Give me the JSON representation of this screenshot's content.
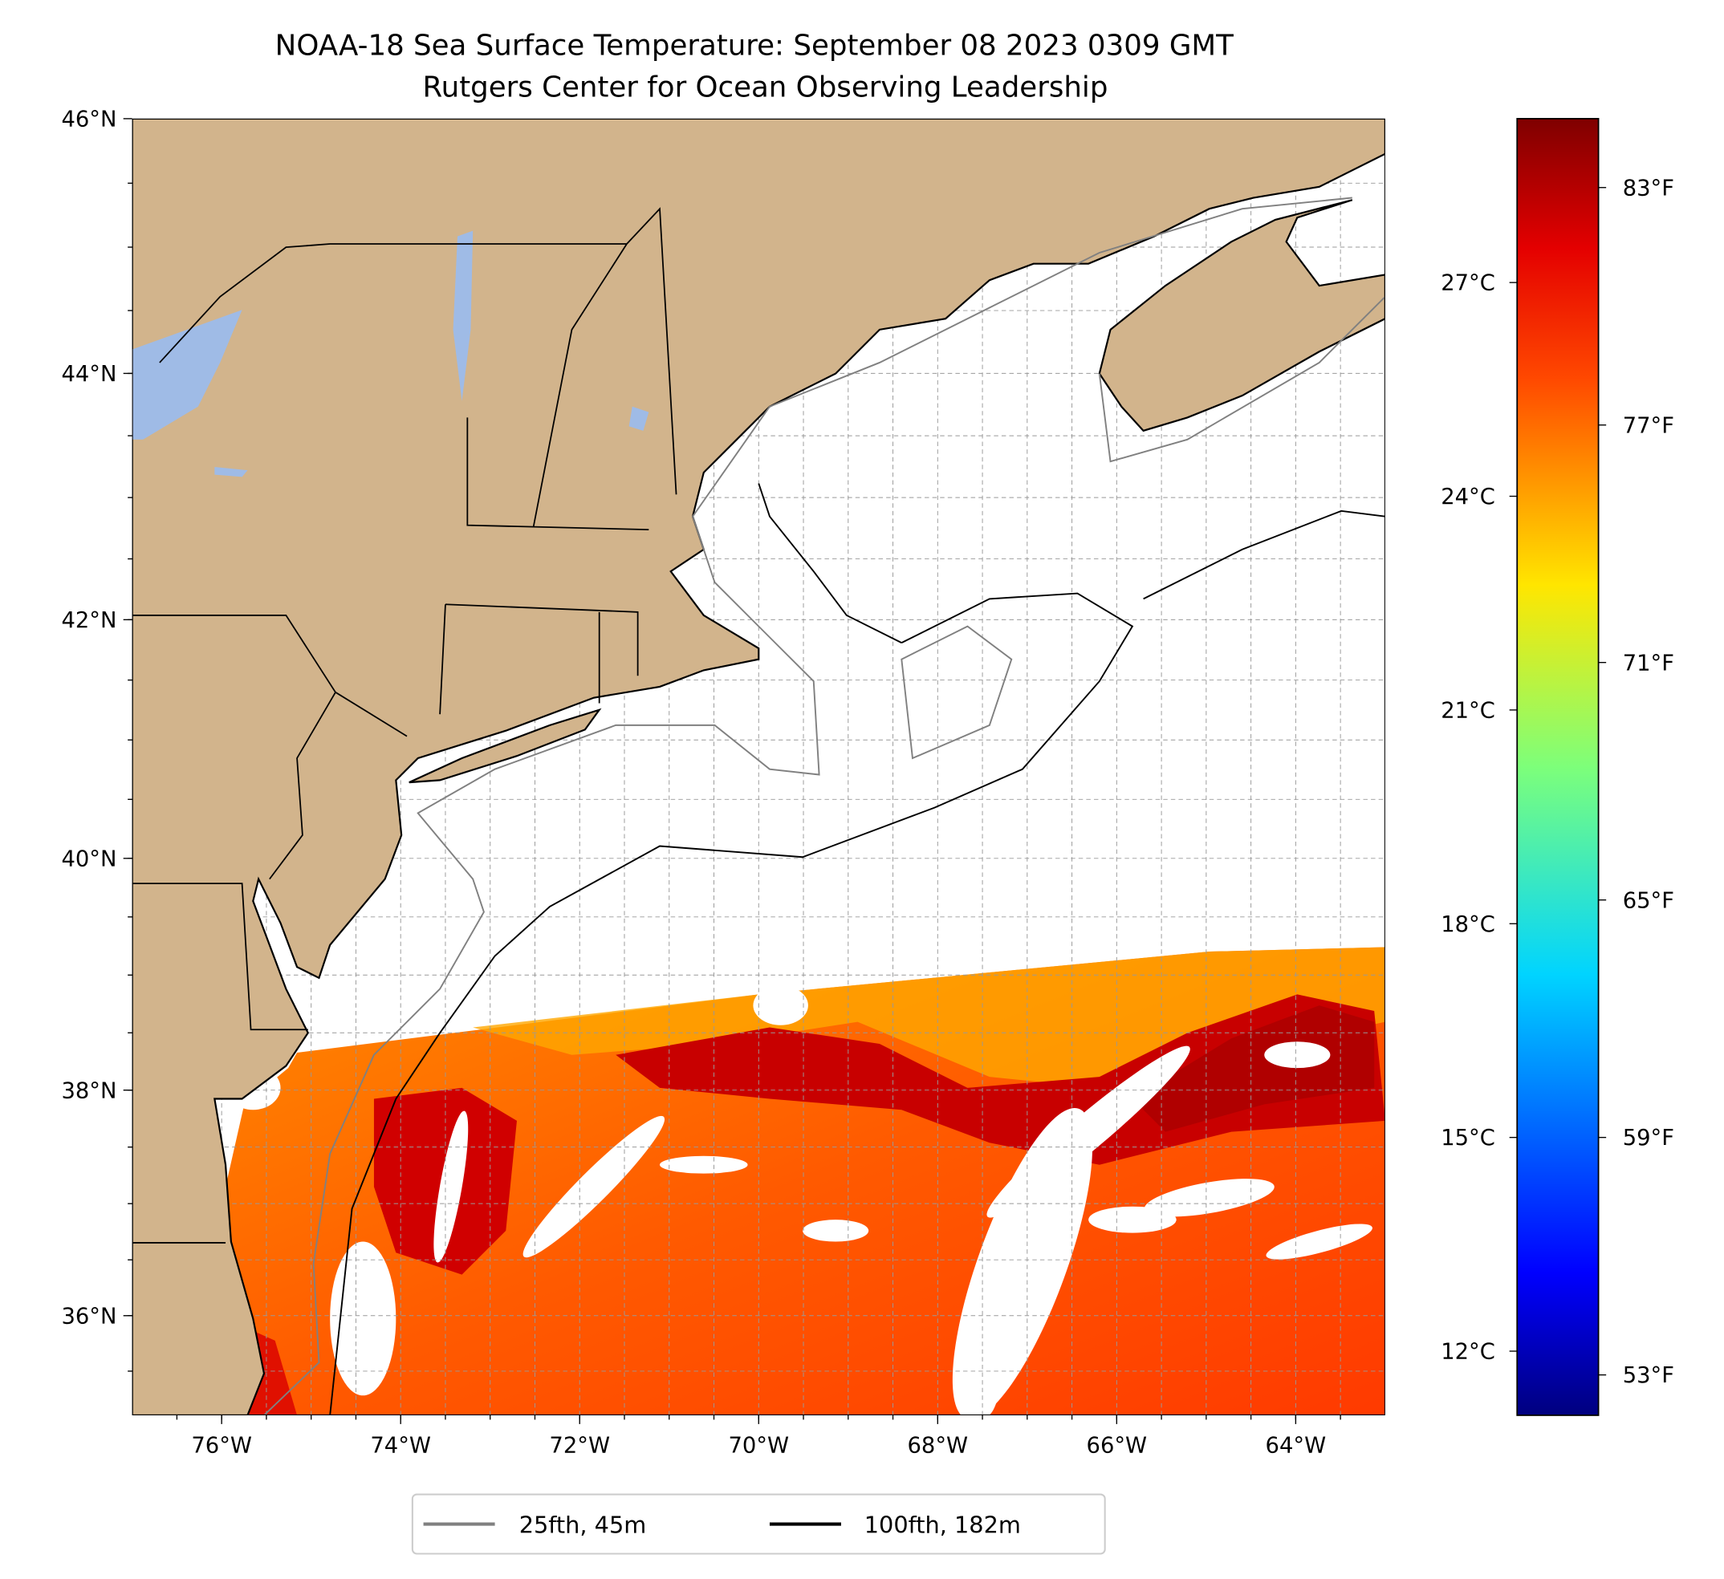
{
  "title": {
    "line1": "NOAA-18 Sea Surface Temperature: September 08 2023 0309 GMT",
    "line2": "Rutgers Center for Ocean Observing Leadership"
  },
  "map": {
    "lon_range": [
      -77,
      -63
    ],
    "lat_range": [
      35.1,
      46
    ],
    "lon_ticks": [
      {
        "value": -76,
        "label": "76°W"
      },
      {
        "value": -74,
        "label": "74°W"
      },
      {
        "value": -72,
        "label": "72°W"
      },
      {
        "value": -70,
        "label": "70°W"
      },
      {
        "value": -68,
        "label": "68°W"
      },
      {
        "value": -66,
        "label": "66°W"
      },
      {
        "value": -64,
        "label": "64°W"
      }
    ],
    "lat_ticks": [
      {
        "value": 46,
        "label": "46°N"
      },
      {
        "value": 44,
        "label": "44°N"
      },
      {
        "value": 42,
        "label": "42°N"
      },
      {
        "value": 40,
        "label": "40°N"
      },
      {
        "value": 38,
        "label": "38°N"
      },
      {
        "value": 36,
        "label": "36°N"
      }
    ],
    "colors": {
      "land": "#d2b48c",
      "lake": "#9fbbe6",
      "contour_25": "#808080",
      "contour_100": "#000000"
    }
  },
  "colorbar": {
    "range_c": [
      11.1,
      29.3
    ],
    "celsius_ticks": [
      {
        "value": 27,
        "label": "27°C"
      },
      {
        "value": 24,
        "label": "24°C"
      },
      {
        "value": 21,
        "label": "21°C"
      },
      {
        "value": 18,
        "label": "18°C"
      },
      {
        "value": 15,
        "label": "15°C"
      },
      {
        "value": 12,
        "label": "12°C"
      }
    ],
    "fahrenheit_ticks": [
      {
        "value": 83,
        "label": "83°F"
      },
      {
        "value": 77,
        "label": "77°F"
      },
      {
        "value": 71,
        "label": "71°F"
      },
      {
        "value": 65,
        "label": "65°F"
      },
      {
        "value": 59,
        "label": "59°F"
      },
      {
        "value": 53,
        "label": "53°F"
      }
    ]
  },
  "legend": {
    "items": [
      {
        "label": "25fth, 45m",
        "color": "#808080"
      },
      {
        "label": "100fth, 182m",
        "color": "#000000"
      }
    ]
  }
}
